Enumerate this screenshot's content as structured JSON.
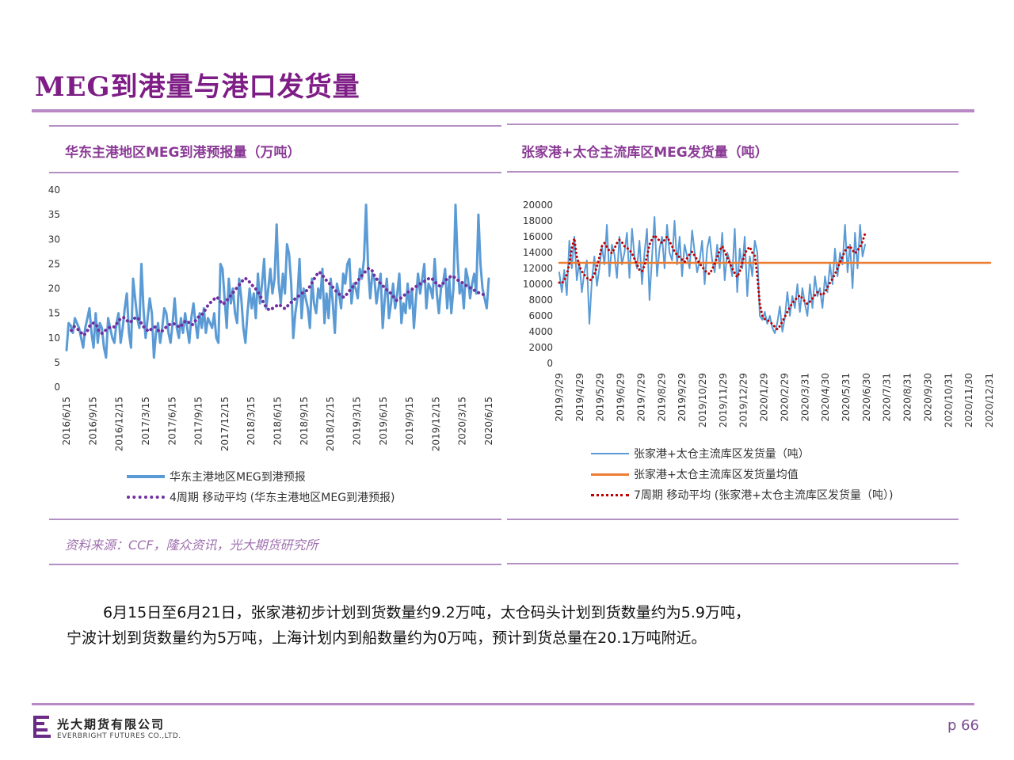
{
  "page": {
    "title": "MEG到港量与港口发货量",
    "page_number": "p 66"
  },
  "source": "资料来源：CCF，隆众资讯，光大期货研究所",
  "paragraph": {
    "line1": "6月15日至6月21日，张家港初步计划到货数量约9.2万吨，太仓码头计划到货数量约为5.9万吨，",
    "line2": "宁波计划到货数量约为5万吨，上海计划内到船数量约为0万吨，预计到货总量在20.1万吨附近。"
  },
  "logo": {
    "cn": "光大期货有限公司",
    "en": "EVERBRIGHT FUTURES CO.,LTD."
  },
  "colors": {
    "accent": "#7d1d85",
    "series_blue": "#5b9bd5",
    "series_purple": "#7030a0",
    "series_orange": "#ed7d31",
    "series_red": "#c00000"
  },
  "chart_data": [
    {
      "type": "line",
      "title": "华东主港地区MEG到港预报量（万吨）",
      "ylim": [
        0,
        40
      ],
      "yticks": [
        0,
        5,
        10,
        15,
        20,
        25,
        30,
        35,
        40
      ],
      "xticks": [
        "2016/6/15",
        "2016/9/15",
        "2016/12/15",
        "2017/3/15",
        "2017/6/15",
        "2017/9/15",
        "2017/12/15",
        "2018/3/15",
        "2018/6/15",
        "2018/9/15",
        "2018/12/15",
        "2019/3/15",
        "2019/6/15",
        "2019/9/15",
        "2019/12/15",
        "2020/3/15",
        "2020/6/15"
      ],
      "series": [
        {
          "name": "华东主港地区MEG到港预报",
          "style": "solid",
          "color": "#5b9bd5",
          "values": [
            7.5,
            13,
            12.5,
            11,
            14,
            13,
            12,
            10,
            8,
            12,
            14,
            16,
            11,
            8,
            15,
            9,
            13,
            12,
            8,
            6,
            14,
            12,
            10,
            9,
            13,
            15,
            9,
            12,
            16,
            19,
            11,
            8,
            22,
            18,
            14,
            12,
            25,
            16,
            10,
            14,
            18,
            15,
            6,
            11,
            13,
            9,
            12,
            16,
            15,
            11,
            9,
            13,
            18,
            12,
            10,
            14,
            11,
            15,
            12,
            9,
            14,
            17,
            13,
            10,
            15,
            12,
            16,
            11,
            14,
            13,
            12,
            15,
            10,
            9,
            25,
            24,
            18,
            12,
            22,
            17,
            20,
            15,
            13,
            22,
            18,
            12,
            9,
            15,
            20,
            16,
            19,
            14,
            23,
            17,
            21,
            26,
            16,
            20,
            24,
            19,
            22,
            33,
            21,
            17,
            23,
            19,
            29,
            27,
            21,
            10,
            15,
            18,
            26,
            14,
            20,
            18,
            16,
            12,
            22,
            17,
            15,
            20,
            18,
            24,
            13,
            19,
            14,
            22,
            17,
            11,
            21,
            19,
            16,
            23,
            21,
            25,
            26,
            17,
            21,
            20,
            18,
            24,
            22,
            26,
            37,
            24,
            18,
            23,
            22,
            17,
            20,
            23,
            12,
            18,
            22,
            14,
            17,
            21,
            16,
            19,
            23,
            13,
            17,
            15,
            21,
            16,
            20,
            12,
            18,
            23,
            19,
            22,
            25,
            16,
            21,
            20,
            18,
            26,
            19,
            15,
            20,
            21,
            24,
            16,
            22,
            15,
            20,
            37,
            26,
            19,
            21,
            16,
            24,
            22,
            18,
            21,
            23,
            19,
            35,
            25,
            20,
            18,
            16,
            22
          ]
        },
        {
          "name": "4周期 移动平均 (华东主港地区MEG到港预报)",
          "style": "dotted",
          "color": "#7030a0",
          "values": [
            11.5,
            12.3,
            11.8,
            11.2,
            10.5,
            11.2,
            12.5,
            13,
            12.8,
            11.2,
            10.9,
            11.5,
            12,
            12.3,
            12.2,
            13.2,
            14,
            14.1,
            13.5,
            13.1,
            13.8,
            14.2,
            13.7,
            12.5,
            11.8,
            11.3,
            11.9,
            12.2,
            11.5,
            11.2,
            11.8,
            12.4,
            12.8,
            12.9,
            12.6,
            12.1,
            12.9,
            13.5,
            13.1,
            12.6,
            13.4,
            14.2,
            14.6,
            15.4,
            16.5,
            17.2,
            17.8,
            18.3,
            17.5,
            16.8,
            17.5,
            18.2,
            19,
            19.8,
            20.6,
            21.4,
            22.1,
            21.8,
            20.9,
            20.3,
            19.6,
            18.5,
            17.2,
            16.1,
            15.6,
            16,
            16.4,
            16.8,
            16.3,
            15.9,
            16.6,
            17.2,
            17.8,
            18.3,
            18.8,
            19.3,
            19.6,
            20.4,
            21.5,
            22.6,
            23.4,
            22.8,
            21.9,
            21.2,
            20.6,
            19.8,
            19.1,
            18.6,
            18.2,
            18.9,
            19.7,
            20.5,
            21.2,
            22,
            22.8,
            23.5,
            24.1,
            23.8,
            22.4,
            21.6,
            20.9,
            20.3,
            19.6,
            19.1,
            18.3,
            17.6,
            17.9,
            18.4,
            18.9,
            19.4,
            19.8,
            20.3,
            20.7,
            21.1,
            21.5,
            21.9,
            22.2,
            21.7,
            20.9,
            20.5,
            21.1,
            21.8,
            22.3,
            22.6,
            22.1,
            21.6,
            21.3,
            20.8,
            20.4,
            20.1,
            19.7,
            19.3,
            19,
            18.8,
            19.2
          ]
        }
      ]
    },
    {
      "type": "line",
      "title": "张家港+太仓主流库区MEG发货量（吨）",
      "ylim": [
        0,
        20000
      ],
      "yticks": [
        0,
        2000,
        4000,
        6000,
        8000,
        10000,
        12000,
        14000,
        16000,
        18000,
        20000
      ],
      "xticks": [
        "2019/3/29",
        "2019/4/29",
        "2019/5/29",
        "2019/6/29",
        "2019/7/29",
        "2019/8/29",
        "2019/9/29",
        "2019/10/29",
        "2019/11/29",
        "2019/12/29",
        "2020/1/29",
        "2020/2/29",
        "2020/3/31",
        "2020/4/30",
        "2020/5/31",
        "2020/6/30",
        "2020/7/31",
        "2020/8/31",
        "2020/9/30",
        "2020/10/31",
        "2020/11/30",
        "2020/12/31"
      ],
      "series": [
        {
          "name": "张家港+太仓主流库区发货量（吨）",
          "style": "solid",
          "color": "#5b9bd5",
          "values": [
            11500,
            9000,
            11800,
            8600,
            15500,
            12000,
            16000,
            10500,
            12800,
            9000,
            11500,
            13000,
            5000,
            10500,
            13500,
            9800,
            12000,
            14800,
            12500,
            17500,
            11000,
            15000,
            13800,
            10800,
            16000,
            12500,
            14000,
            16500,
            10800,
            17000,
            13500,
            12000,
            15500,
            10000,
            14000,
            17000,
            8000,
            13500,
            18500,
            11000,
            14500,
            16000,
            12000,
            17500,
            14000,
            13000,
            18000,
            12500,
            16000,
            11000,
            15000,
            13500,
            12000,
            16800,
            14000,
            11500,
            13000,
            15500,
            10000,
            14500,
            16000,
            13000,
            11500,
            15000,
            12000,
            16500,
            10500,
            14000,
            13000,
            11000,
            17000,
            9000,
            14500,
            12000,
            16000,
            8500,
            13500,
            11000,
            15500,
            14000,
            6000,
            5500,
            6500,
            5000,
            6000,
            4500,
            3800,
            5200,
            7200,
            4000,
            5800,
            9000,
            6000,
            8500,
            7000,
            10000,
            6500,
            9500,
            7500,
            6000,
            10000,
            7000,
            11000,
            8500,
            9500,
            7000,
            11000,
            9000,
            12500,
            10000,
            14500,
            11000,
            14000,
            12500,
            17500,
            11500,
            15000,
            9500,
            16500,
            12000,
            17500,
            13500,
            15000
          ]
        },
        {
          "name": "张家港+太仓主流库区发货量均值",
          "style": "solid",
          "color": "#ed7d31",
          "values": [
            12700
          ]
        },
        {
          "name": "7周期 移动平均 (张家港+太仓主流库区发货量（吨）)",
          "style": "dotted",
          "color": "#c00000",
          "values": [
            10200,
            10100,
            10500,
            11200,
            12600,
            14500,
            15800,
            13500,
            12300,
            11600,
            11200,
            10800,
            10500,
            10600,
            11300,
            12200,
            13400,
            14800,
            15200,
            14700,
            14200,
            13900,
            14500,
            15200,
            15600,
            15300,
            14800,
            14600,
            14300,
            13900,
            13200,
            12500,
            11800,
            11600,
            12400,
            13500,
            15000,
            15700,
            16200,
            15800,
            15500,
            15200,
            15600,
            16000,
            15400,
            14800,
            14100,
            13700,
            13400,
            13100,
            12800,
            13300,
            13800,
            14100,
            13600,
            13100,
            12600,
            12200,
            11800,
            11400,
            11300,
            11900,
            12600,
            13400,
            14300,
            14800,
            14100,
            13400,
            12700,
            12000,
            11400,
            10900,
            11600,
            12700,
            13900,
            14400,
            14700,
            14000,
            13600,
            11000,
            7500,
            6000,
            5600,
            5500,
            5200,
            5000,
            4600,
            4300,
            4700,
            5300,
            5900,
            6500,
            7100,
            7600,
            8000,
            8300,
            8600,
            8200,
            7800,
            7500,
            7800,
            8200,
            8600,
            9000,
            8800,
            8600,
            9000,
            9600,
            10200,
            10700,
            11300,
            12000,
            12800,
            13500,
            14200,
            14600,
            14800,
            14300,
            13900,
            14300,
            14700,
            15400,
            16400
          ]
        }
      ]
    }
  ]
}
